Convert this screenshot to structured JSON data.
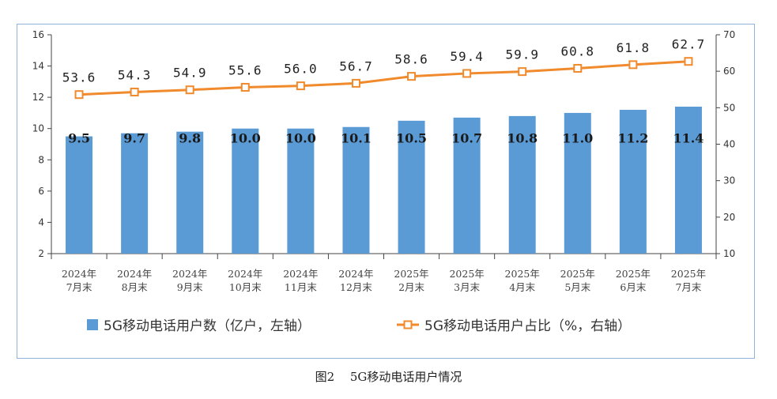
{
  "chart_data": {
    "type": "bar+line",
    "title": "图2　 5G移动电话用户情况",
    "categories": [
      [
        "2024年",
        "7月末"
      ],
      [
        "2024年",
        "8月末"
      ],
      [
        "2024年",
        "9月末"
      ],
      [
        "2024年",
        "10月末"
      ],
      [
        "2024年",
        "11月末"
      ],
      [
        "2024年",
        "12月末"
      ],
      [
        "2025年",
        "2月末"
      ],
      [
        "2025年",
        "3月末"
      ],
      [
        "2025年",
        "4月末"
      ],
      [
        "2025年",
        "5月末"
      ],
      [
        "2025年",
        "6月末"
      ],
      [
        "2025年",
        "7月末"
      ]
    ],
    "series": [
      {
        "name": "5G移动电话用户数（亿户，左轴）",
        "type": "bar",
        "axis": "left",
        "color": "#5b9bd5",
        "values": [
          9.5,
          9.7,
          9.8,
          10.0,
          10.0,
          10.1,
          10.5,
          10.7,
          10.8,
          11.0,
          11.2,
          11.4
        ],
        "labels": [
          "9.5",
          "9.7",
          "9.8",
          "10.0",
          "10.0",
          "10.1",
          "10.5",
          "10.7",
          "10.8",
          "11.0",
          "11.2",
          "11.4"
        ]
      },
      {
        "name": "5G移动电话用户占比（%，右轴）",
        "type": "line",
        "axis": "right",
        "color": "#f08a2c",
        "values": [
          53.6,
          54.3,
          54.9,
          55.6,
          56.0,
          56.7,
          58.6,
          59.4,
          59.9,
          60.8,
          61.8,
          62.7
        ],
        "labels": [
          "53.6",
          "54.3",
          "54.9",
          "55.6",
          "56.0",
          "56.7",
          "58.6",
          "59.4",
          "59.9",
          "60.8",
          "61.8",
          "62.7"
        ]
      }
    ],
    "y_left": {
      "min": 2,
      "max": 16,
      "ticks": [
        "2",
        "4",
        "6",
        "8",
        "10",
        "12",
        "14",
        "16"
      ]
    },
    "y_right": {
      "min": 10,
      "max": 70,
      "ticks": [
        "10",
        "20",
        "30",
        "40",
        "50",
        "60",
        "70"
      ]
    },
    "grid": false,
    "legend_position": "bottom"
  }
}
